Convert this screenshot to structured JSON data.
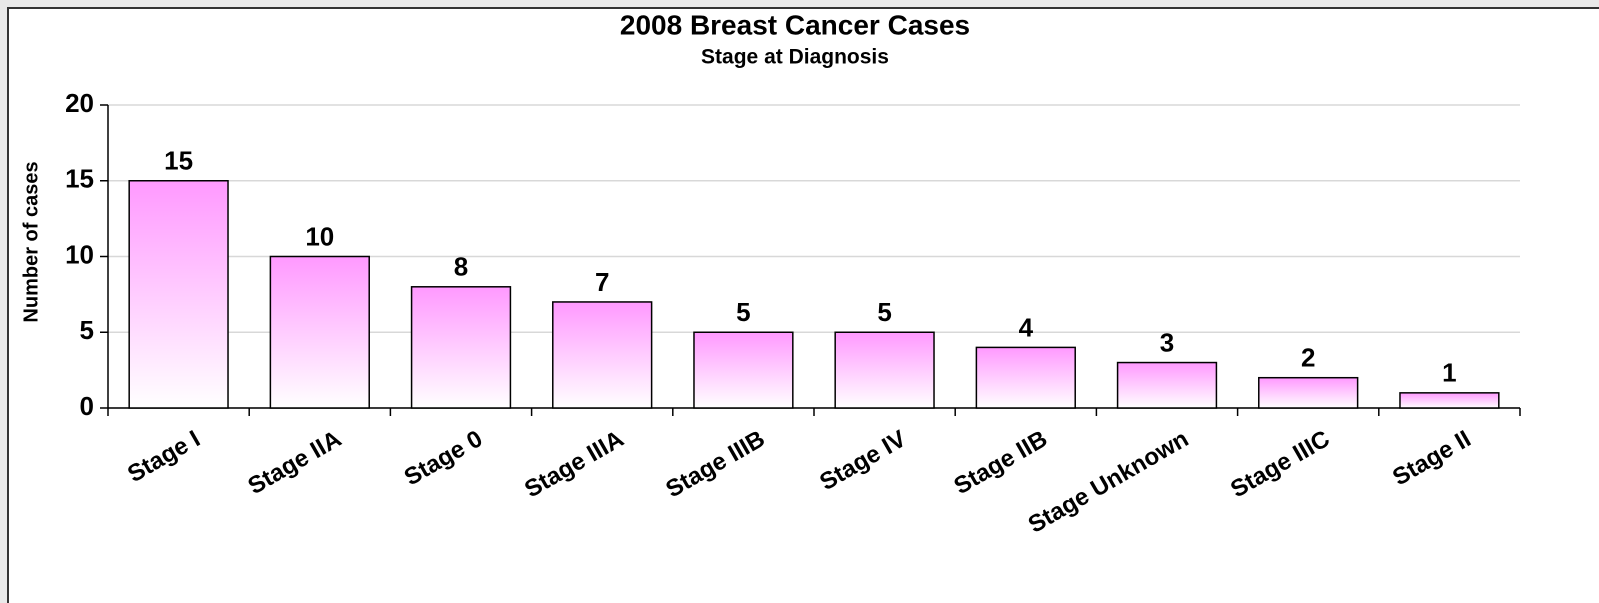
{
  "chart_data": {
    "type": "bar",
    "title": "2008 Breast Cancer Cases",
    "subtitle": "Stage at Diagnosis",
    "y_label": "Number of cases",
    "categories": [
      "Stage I",
      "Stage IIA",
      "Stage 0",
      "Stage IIIA",
      "Stage IIIB",
      "Stage IV",
      "Stage IIB",
      "Stage Unknown",
      "Stage IIIC",
      "Stage II"
    ],
    "values": [
      15,
      10,
      8,
      7,
      5,
      5,
      4,
      3,
      2,
      1
    ],
    "color": "#ff99ff",
    "ylim": [
      0,
      20
    ],
    "yticks": [
      0,
      5,
      10,
      15,
      20
    ],
    "grid": true
  }
}
